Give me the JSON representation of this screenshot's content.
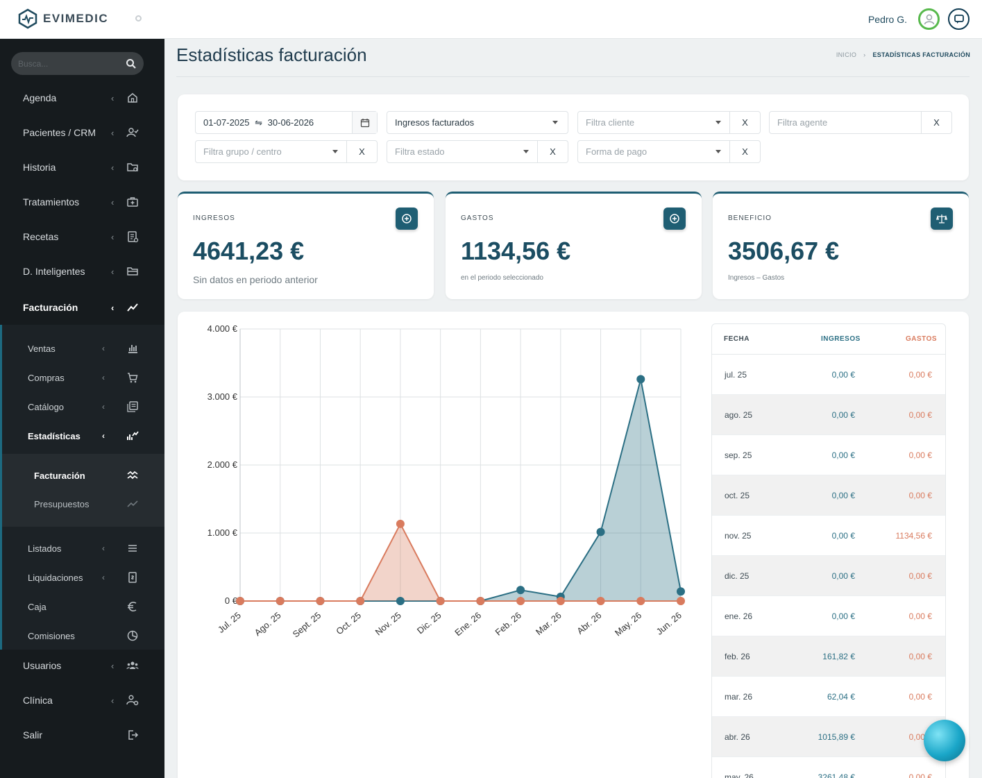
{
  "header": {
    "brand": "EVIMEDIC",
    "user_name": "Pedro G."
  },
  "sidebar": {
    "search_placeholder": "Busca...",
    "items": [
      {
        "label": "Agenda",
        "icon": "home-icon"
      },
      {
        "label": "Pacientes / CRM",
        "icon": "user-check-icon"
      },
      {
        "label": "Historia",
        "icon": "folder-search-icon"
      },
      {
        "label": "Tratamientos",
        "icon": "medical-case-icon"
      },
      {
        "label": "Recetas",
        "icon": "prescription-icon"
      },
      {
        "label": "D. Inteligentes",
        "icon": "folder-open-icon"
      },
      {
        "label": "Facturación",
        "icon": "trend-icon"
      }
    ],
    "billing_sub": [
      {
        "label": "Ventas",
        "icon": "bar-chart-icon"
      },
      {
        "label": "Compras",
        "icon": "cart-icon"
      },
      {
        "label": "Catálogo",
        "icon": "catalog-icon"
      },
      {
        "label": "Estadísticas",
        "icon": "stats-icon"
      }
    ],
    "stats_sub": [
      {
        "label": "Facturación",
        "icon": "waves-icon"
      },
      {
        "label": "Presupuestos",
        "icon": "line-trend-icon"
      }
    ],
    "billing_sub2": [
      {
        "label": "Listados",
        "icon": "list-icon"
      },
      {
        "label": "Liquidaciones",
        "icon": "invoice-icon"
      },
      {
        "label": "Caja",
        "icon": "euro-icon"
      },
      {
        "label": "Comisiones",
        "icon": "commission-icon"
      }
    ],
    "bottom": [
      {
        "label": "Usuarios",
        "icon": "users-icon"
      },
      {
        "label": "Clínica",
        "icon": "clinic-settings-icon"
      },
      {
        "label": "Salir",
        "icon": "logout-icon"
      }
    ]
  },
  "page": {
    "title": "Estadísticas facturación",
    "breadcrumb_home": "INICIO",
    "breadcrumb_current": "ESTADÍSTICAS FACTURACIÓN"
  },
  "filters": {
    "date_from": "01-07-2025",
    "date_sep": "⇋",
    "date_to": "30-06-2026",
    "type": "Ingresos facturados",
    "client_ph": "Filtra cliente",
    "agent_ph": "Filtra agente",
    "group_ph": "Filtra grupo / centro",
    "state_ph": "Filtra estado",
    "payment_ph": "Forma de pago",
    "clear": "X"
  },
  "stats": {
    "income": {
      "label": "INGRESOS",
      "value": "4641,23 €",
      "sub": "Sin datos en periodo anterior"
    },
    "expenses": {
      "label": "GASTOS",
      "value": "1134,56 €",
      "sub": "en el periodo seleccionado"
    },
    "profit": {
      "label": "BENEFICIO",
      "value": "3506,67 €",
      "sub": "Ingresos – Gastos"
    }
  },
  "colors": {
    "income": "#2b6f84",
    "expenses": "#d97b5e",
    "accent": "#1f5e73"
  },
  "chart_data": {
    "type": "area",
    "categories": [
      "Jul. 25",
      "Ago. 25",
      "Sept. 25",
      "Oct. 25",
      "Nov. 25",
      "Dic. 25",
      "Ene. 26",
      "Feb. 26",
      "Mar. 26",
      "Abr. 26",
      "May. 26",
      "Jun. 26"
    ],
    "series": [
      {
        "values": [
          0,
          0,
          0,
          0,
          0,
          0,
          0,
          161.82,
          62.04,
          1015.89,
          3261.48,
          140.0
        ]
      },
      {
        "values": [
          0,
          0,
          0,
          0,
          1134.56,
          0,
          0,
          0,
          0,
          0,
          0,
          0
        ]
      }
    ],
    "yticks": [
      "4.000 €",
      "3.000 €",
      "2.000 €",
      "1.000 €",
      "0 €"
    ],
    "ylim": [
      0,
      4000
    ],
    "grid": true
  },
  "table": {
    "headers": {
      "date": "FECHA",
      "income": "INGRESOS",
      "expenses": "GASTOS"
    },
    "rows": [
      {
        "date": "jul. 25",
        "income": "0,00 €",
        "expenses": "0,00 €"
      },
      {
        "date": "ago. 25",
        "income": "0,00 €",
        "expenses": "0,00 €"
      },
      {
        "date": "sep. 25",
        "income": "0,00 €",
        "expenses": "0,00 €"
      },
      {
        "date": "oct. 25",
        "income": "0,00 €",
        "expenses": "0,00 €"
      },
      {
        "date": "nov. 25",
        "income": "0,00 €",
        "expenses": "1134,56 €"
      },
      {
        "date": "dic. 25",
        "income": "0,00 €",
        "expenses": "0,00 €"
      },
      {
        "date": "ene. 26",
        "income": "0,00 €",
        "expenses": "0,00 €"
      },
      {
        "date": "feb. 26",
        "income": "161,82 €",
        "expenses": "0,00 €"
      },
      {
        "date": "mar. 26",
        "income": "62,04 €",
        "expenses": "0,00 €"
      },
      {
        "date": "abr. 26",
        "income": "1015,89 €",
        "expenses": "0,00 €"
      },
      {
        "date": "may. 26",
        "income": "3261,48 €",
        "expenses": "0,00 €"
      }
    ]
  }
}
